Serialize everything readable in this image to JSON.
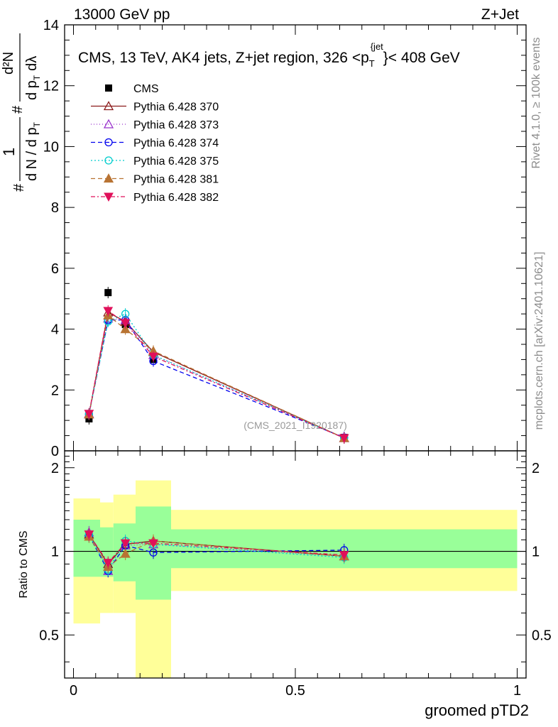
{
  "header": {
    "left": "13000 GeV pp",
    "right": "Z+Jet"
  },
  "side": {
    "rivet": "Rivet 4.1.0, ≥ 100k events",
    "mcplots": "mcplots.cern.ch [arXiv:2401.10621]"
  },
  "chart_data": [
    {
      "type": "scatter",
      "title": "CMS, 13 TeV, AK4 jets, Z+jet region, 326 <p_T^{jet}< 408 GeV",
      "title_parts": {
        "main": "CMS, 13 TeV, AK4 jets, Z+jet region, 326 <p",
        "sub": "T",
        "sup": "{jet",
        "close": "}< 408 GeV"
      },
      "ylabel": "1/(dN/dpT) d²N/dpT dλ",
      "ylabel_parts": {
        "one": "1",
        "den": "d N / d p",
        "T": "T",
        "hash": "#",
        "num": "d²N",
        "num_den": "d p",
        "lambda": "dλ"
      },
      "watermark": "(CMS_2021_I1920187)",
      "xlim": [
        -0.02,
        1.02
      ],
      "ylim": [
        0,
        14
      ],
      "yticks": [
        0,
        2,
        4,
        6,
        8,
        10,
        12,
        14
      ],
      "legend_position": "top-left",
      "series": [
        {
          "name": "CMS",
          "color": "#000000",
          "marker": "square-filled",
          "dash": "none",
          "x": [
            0.035,
            0.078,
            0.117,
            0.18,
            0.61
          ],
          "y": [
            1.05,
            5.2,
            4.15,
            3.0,
            0.44
          ]
        },
        {
          "name": "Pythia 6.428 370",
          "color": "#8b1a1a",
          "marker": "triangle-up-open",
          "dash": "solid",
          "x": [
            0.035,
            0.078,
            0.117,
            0.18,
            0.61
          ],
          "y": [
            1.2,
            4.55,
            4.25,
            3.25,
            0.42
          ]
        },
        {
          "name": "Pythia 6.428 373",
          "color": "#9932cc",
          "marker": "triangle-up-open",
          "dash": "1,3",
          "x": [
            0.035,
            0.078,
            0.117,
            0.18,
            0.61
          ],
          "y": [
            1.22,
            4.35,
            4.3,
            3.15,
            0.42
          ]
        },
        {
          "name": "Pythia 6.428 374",
          "color": "#0000ee",
          "marker": "circle-open",
          "dash": "6,4",
          "x": [
            0.035,
            0.078,
            0.117,
            0.18,
            0.61
          ],
          "y": [
            1.2,
            4.3,
            4.3,
            2.95,
            0.44
          ]
        },
        {
          "name": "Pythia 6.428 375",
          "color": "#00cdcd",
          "marker": "circle-open",
          "dash": "2,3",
          "x": [
            0.035,
            0.078,
            0.117,
            0.18,
            0.61
          ],
          "y": [
            1.22,
            4.25,
            4.5,
            3.15,
            0.42
          ]
        },
        {
          "name": "Pythia 6.428 381",
          "color": "#b87333",
          "marker": "triangle-up-filled",
          "dash": "6,4",
          "x": [
            0.035,
            0.078,
            0.117,
            0.18,
            0.61
          ],
          "y": [
            1.2,
            4.45,
            4.0,
            3.28,
            0.42
          ]
        },
        {
          "name": "Pythia 6.428 382",
          "color": "#e0105a",
          "marker": "triangle-down-filled",
          "dash": "6,3,2,3",
          "x": [
            0.035,
            0.078,
            0.117,
            0.18,
            0.61
          ],
          "y": [
            1.22,
            4.6,
            4.2,
            3.1,
            0.42
          ]
        }
      ]
    },
    {
      "type": "scatter",
      "ylabel": "Ratio to CMS",
      "xlabel": "groomed pTD2",
      "xlim": [
        -0.02,
        1.02
      ],
      "ylim": [
        0.35,
        2.3
      ],
      "xticks": [
        0,
        0.5,
        1
      ],
      "xtick_labels": [
        "0",
        "0.5",
        "1"
      ],
      "yticks": [
        0.5,
        1,
        2
      ],
      "ytick_labels": [
        "0.5",
        "1",
        "2"
      ],
      "reference_line": 1,
      "bands": [
        {
          "x0": 0.0,
          "x1": 0.06,
          "green": [
            0.81,
            1.3
          ],
          "yellow": [
            0.55,
            1.55
          ]
        },
        {
          "x0": 0.06,
          "x1": 0.09,
          "green": [
            0.81,
            1.22
          ],
          "yellow": [
            0.6,
            1.5
          ]
        },
        {
          "x0": 0.09,
          "x1": 0.14,
          "green": [
            0.78,
            1.26
          ],
          "yellow": [
            0.6,
            1.6
          ]
        },
        {
          "x0": 0.14,
          "x1": 0.22,
          "green": [
            0.67,
            1.45
          ],
          "yellow": [
            0.35,
            1.8
          ]
        },
        {
          "x0": 0.22,
          "x1": 1.0,
          "green": [
            0.87,
            1.2
          ],
          "yellow": [
            0.72,
            1.41
          ]
        }
      ],
      "series": [
        {
          "name": "Pythia 6.428 370",
          "x": [
            0.035,
            0.078,
            0.117,
            0.18,
            0.61
          ],
          "y": [
            1.15,
            0.9,
            1.06,
            1.09,
            0.96
          ]
        },
        {
          "name": "Pythia 6.428 373",
          "x": [
            0.035,
            0.078,
            0.117,
            0.18,
            0.61
          ],
          "y": [
            1.17,
            0.85,
            1.05,
            1.06,
            0.96
          ]
        },
        {
          "name": "Pythia 6.428 374",
          "x": [
            0.035,
            0.078,
            0.117,
            0.18,
            0.61
          ],
          "y": [
            1.14,
            0.85,
            1.05,
            0.99,
            1.01
          ]
        },
        {
          "name": "Pythia 6.428 375",
          "x": [
            0.035,
            0.078,
            0.117,
            0.18,
            0.61
          ],
          "y": [
            1.15,
            0.86,
            1.09,
            1.06,
            0.95
          ]
        },
        {
          "name": "Pythia 6.428 381",
          "x": [
            0.035,
            0.078,
            0.117,
            0.18,
            0.61
          ],
          "y": [
            1.13,
            0.88,
            0.98,
            1.09,
            0.96
          ]
        },
        {
          "name": "Pythia 6.428 382",
          "x": [
            0.035,
            0.078,
            0.117,
            0.18,
            0.61
          ],
          "y": [
            1.15,
            0.91,
            1.07,
            1.07,
            0.97
          ]
        }
      ]
    }
  ]
}
